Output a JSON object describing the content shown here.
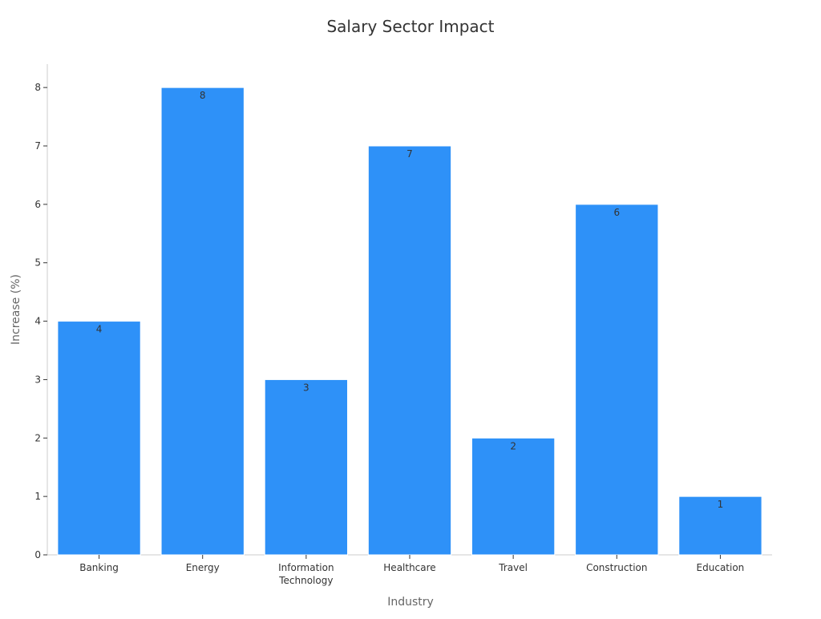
{
  "chart_data": {
    "type": "bar",
    "title": "Salary Sector Impact",
    "xlabel": "Industry",
    "ylabel": "Increase (%)",
    "categories": [
      "Banking",
      "Energy",
      "Information Technology",
      "Healthcare",
      "Travel",
      "Construction",
      "Education"
    ],
    "category_label_lines": [
      [
        "Banking"
      ],
      [
        "Energy"
      ],
      [
        "Information",
        "Technology"
      ],
      [
        "Healthcare"
      ],
      [
        "Travel"
      ],
      [
        "Construction"
      ],
      [
        "Education"
      ]
    ],
    "values": [
      4,
      8,
      3,
      7,
      2,
      6,
      1
    ],
    "data_labels": [
      "4",
      "8",
      "3",
      "7",
      "2",
      "6",
      "1"
    ],
    "ylim": [
      0,
      8.4
    ],
    "yticks": [
      0,
      1,
      2,
      3,
      4,
      5,
      6,
      7,
      8
    ],
    "ytick_labels": [
      "0",
      "1",
      "2",
      "3",
      "4",
      "5",
      "6",
      "7",
      "8"
    ],
    "grid": false,
    "colors": {
      "bar": "#2e91f8",
      "bar_edge": "#ffffff",
      "axis": "#cccccc",
      "text": "#333333",
      "label": "#666666"
    }
  }
}
